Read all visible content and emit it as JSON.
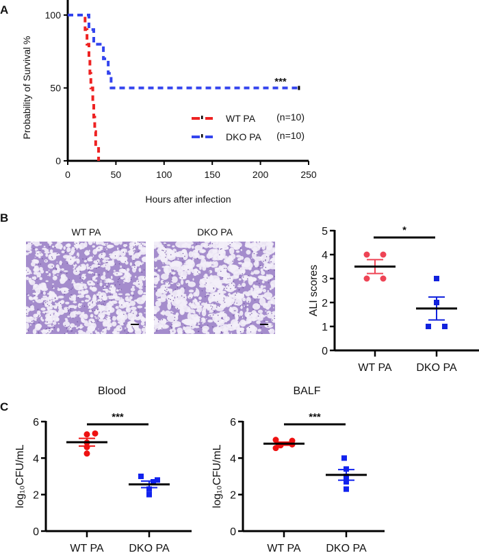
{
  "panels": {
    "a": "A",
    "b": "B",
    "c": "C"
  },
  "colors": {
    "wt": "#ee2222",
    "dko": "#3344ee",
    "wt_dots": "#ee4455",
    "dko_dots": "#1122dd",
    "axis": "#000000",
    "tissue": "#a48ccc"
  },
  "micrographs": {
    "wt_label": "WT PA",
    "dko_label": "DKO PA"
  },
  "chart_data": [
    {
      "id": "survival",
      "type": "line",
      "subtype": "kaplan-meier-step",
      "xlabel": "Hours after infection",
      "ylabel": "Probability of Survival %",
      "xlim": [
        0,
        250
      ],
      "ylim": [
        0,
        100
      ],
      "xticks": [
        "0",
        "50",
        "100",
        "150",
        "200",
        "250"
      ],
      "yticks": [
        "0",
        "50",
        "100"
      ],
      "legend_position": "center-right",
      "significance": "***",
      "series": [
        {
          "name": "WT PA",
          "n_label": "(n=10)",
          "color": "#ee2222",
          "times": [
            0,
            18,
            20,
            22,
            23,
            24,
            26,
            27,
            28,
            29,
            32
          ],
          "survival": [
            100,
            90,
            80,
            70,
            60,
            50,
            40,
            30,
            20,
            10,
            0
          ]
        },
        {
          "name": "DKO PA",
          "n_label": "(n=10)",
          "color": "#3344ee",
          "times": [
            0,
            22,
            27,
            37,
            42,
            45,
            240
          ],
          "survival": [
            100,
            90,
            80,
            70,
            60,
            50,
            50
          ],
          "censored_at": 240
        }
      ]
    },
    {
      "id": "ali",
      "type": "scatter",
      "subtype": "dot-plot-mean-sem",
      "ylabel": "ALI scores",
      "ylim": [
        0,
        5
      ],
      "yticks": [
        "0",
        "1",
        "2",
        "3",
        "4",
        "5"
      ],
      "categories": [
        "WT PA",
        "DKO PA"
      ],
      "series": [
        {
          "category": "WT PA",
          "values": [
            4,
            4,
            3,
            3
          ],
          "marker": "circle",
          "color": "#ee4455"
        },
        {
          "category": "DKO PA",
          "values": [
            3,
            2,
            1,
            1
          ],
          "marker": "square",
          "color": "#1122dd"
        }
      ],
      "significance": "*"
    },
    {
      "id": "blood",
      "type": "scatter",
      "subtype": "dot-plot-mean-sem",
      "title": "Blood",
      "ylabel": "log₁₀CFU/mL",
      "ylim": [
        0,
        6
      ],
      "yticks": [
        "0",
        "2",
        "4",
        "6"
      ],
      "categories": [
        "WT PA",
        "DKO PA"
      ],
      "series": [
        {
          "category": "WT PA",
          "values": [
            5.3,
            5.35,
            4.85,
            4.6,
            4.25
          ],
          "marker": "circle",
          "color": "#ee1111"
        },
        {
          "category": "DKO PA",
          "values": [
            3.0,
            2.8,
            2.7,
            2.3,
            2.0
          ],
          "marker": "square",
          "color": "#1122ee"
        }
      ],
      "significance": "***"
    },
    {
      "id": "balf",
      "type": "scatter",
      "subtype": "dot-plot-mean-sem",
      "title": "BALF",
      "ylabel": "log₁₀CFU/mL",
      "ylim": [
        0,
        6
      ],
      "yticks": [
        "0",
        "2",
        "4",
        "6"
      ],
      "categories": [
        "WT PA",
        "DKO PA"
      ],
      "series": [
        {
          "category": "WT PA",
          "values": [
            5.0,
            4.95,
            4.75,
            4.7,
            4.55
          ],
          "marker": "circle",
          "color": "#ee1111"
        },
        {
          "category": "DKO PA",
          "values": [
            4.0,
            3.4,
            3.0,
            2.7,
            2.3
          ],
          "marker": "square",
          "color": "#1122ee"
        }
      ],
      "significance": "***"
    }
  ]
}
